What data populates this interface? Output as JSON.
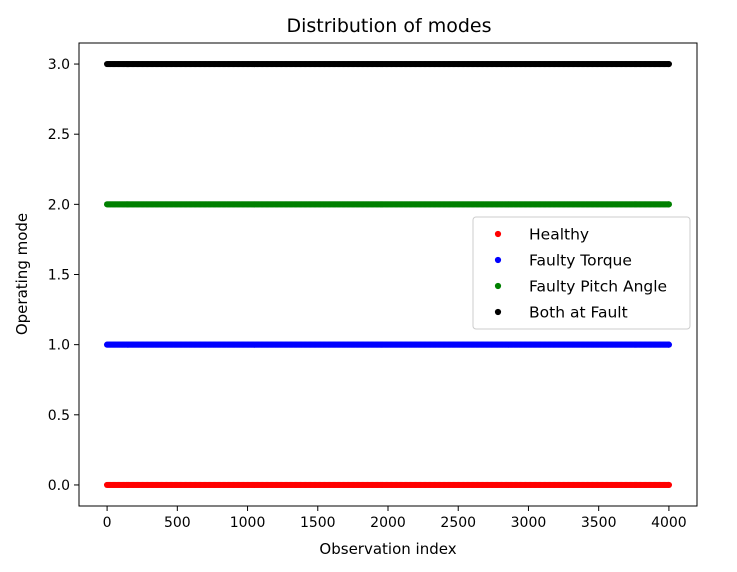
{
  "chart_data": {
    "type": "scatter",
    "title": "Distribution of modes",
    "xlabel": "Observation index",
    "ylabel": "Operating mode",
    "xlim": [
      -200,
      4200
    ],
    "ylim": [
      -0.15,
      3.15
    ],
    "x_ticks": [
      0,
      500,
      1000,
      1500,
      2000,
      2500,
      3000,
      3500,
      4000
    ],
    "x_tick_labels": [
      "0",
      "500",
      "1000",
      "1500",
      "2000",
      "2500",
      "3000",
      "3500",
      "4000"
    ],
    "y_ticks": [
      0.0,
      0.5,
      1.0,
      1.5,
      2.0,
      2.5,
      3.0
    ],
    "y_tick_labels": [
      "0.0",
      "0.5",
      "1.0",
      "1.5",
      "2.0",
      "2.5",
      "3.0"
    ],
    "grid": false,
    "legend_position": "center-right",
    "x_range": [
      0,
      4000
    ],
    "series": [
      {
        "name": "Healthy",
        "color": "#ff0000",
        "y": 0
      },
      {
        "name": "Faulty Torque",
        "color": "#0000ff",
        "y": 1
      },
      {
        "name": "Faulty Pitch Angle",
        "color": "#008000",
        "y": 2
      },
      {
        "name": "Both at Fault",
        "color": "#000000",
        "y": 3
      }
    ]
  }
}
